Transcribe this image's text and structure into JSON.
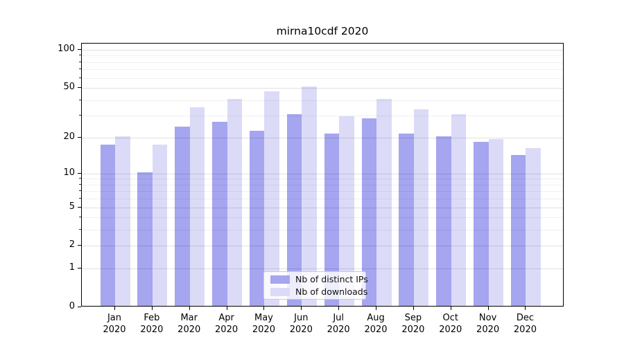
{
  "title": "mirna10cdf 2020",
  "chart_data": {
    "type": "bar",
    "title": "mirna10cdf 2020",
    "categories": [
      "Jan 2020",
      "Feb 2020",
      "Mar 2020",
      "Apr 2020",
      "May 2020",
      "Jun 2020",
      "Jul 2020",
      "Aug 2020",
      "Sep 2020",
      "Oct 2020",
      "Nov 2020",
      "Dec 2020"
    ],
    "series": [
      {
        "name": "Nb of distinct IPs",
        "color": "#a5a5f0",
        "values": [
          17,
          10,
          24,
          26,
          22,
          30,
          21,
          28,
          21,
          20,
          18,
          14
        ]
      },
      {
        "name": "Nb of downloads",
        "color": "#dbdbf8",
        "values": [
          20,
          17,
          34,
          40,
          46,
          50,
          29,
          40,
          33,
          30,
          19,
          16
        ]
      }
    ],
    "xlabel": "",
    "ylabel": "",
    "yscale": "log1p",
    "ylim": [
      0,
      112
    ],
    "y_major_ticks": [
      0,
      1,
      2,
      5,
      10,
      20,
      50,
      100
    ],
    "y_minor_ticks": [
      3,
      4,
      6,
      7,
      8,
      9,
      30,
      40,
      60,
      70,
      80,
      90
    ],
    "grid": "horizontal, major and minor, drawn over bars",
    "legend_position": "lower center"
  }
}
